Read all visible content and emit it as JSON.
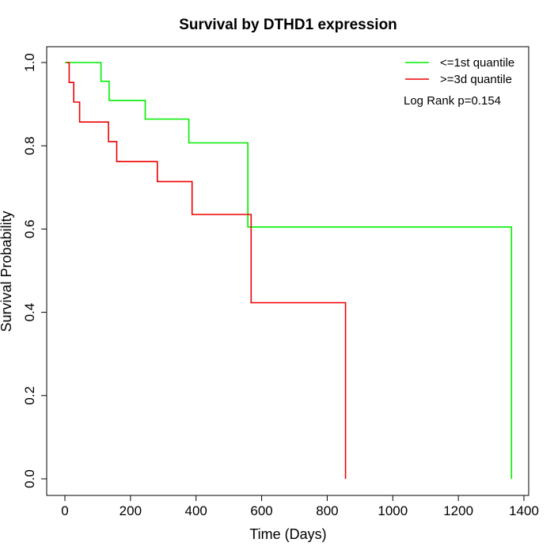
{
  "chart_data": {
    "type": "line",
    "title": "Survival by DTHD1 expression",
    "xlabel": "Time (Days)",
    "ylabel": "Survival Probability",
    "xlim": [
      0,
      1400
    ],
    "ylim": [
      0,
      1.0
    ],
    "x_ticks": [
      0,
      200,
      400,
      600,
      800,
      1000,
      1200,
      1400
    ],
    "y_ticks": [
      0.0,
      0.2,
      0.4,
      0.6,
      0.8,
      1.0
    ],
    "x_tick_labels": [
      "0",
      "200",
      "400",
      "600",
      "800",
      "1000",
      "1200",
      "1400"
    ],
    "y_tick_labels": [
      "0.0",
      "0.2",
      "0.4",
      "0.6",
      "0.8",
      "1.0"
    ],
    "annotation": "Log Rank p=0.154",
    "legend_position": "top-right",
    "series": [
      {
        "name": "<=1st quantile",
        "color": "#00ee00",
        "step": "post",
        "x": [
          0,
          110,
          135,
          245,
          378,
          558,
          1362,
          1362
        ],
        "y": [
          1.0,
          0.955,
          0.909,
          0.864,
          0.807,
          0.605,
          0.605,
          0.0
        ]
      },
      {
        "name": ">=3d quantile",
        "color": "#ee0000",
        "step": "post",
        "x": [
          5,
          13,
          27,
          45,
          133,
          158,
          282,
          388,
          568,
          856,
          856
        ],
        "y": [
          1.0,
          0.952,
          0.905,
          0.857,
          0.81,
          0.762,
          0.714,
          0.635,
          0.423,
          0.423,
          0.0
        ]
      }
    ]
  }
}
